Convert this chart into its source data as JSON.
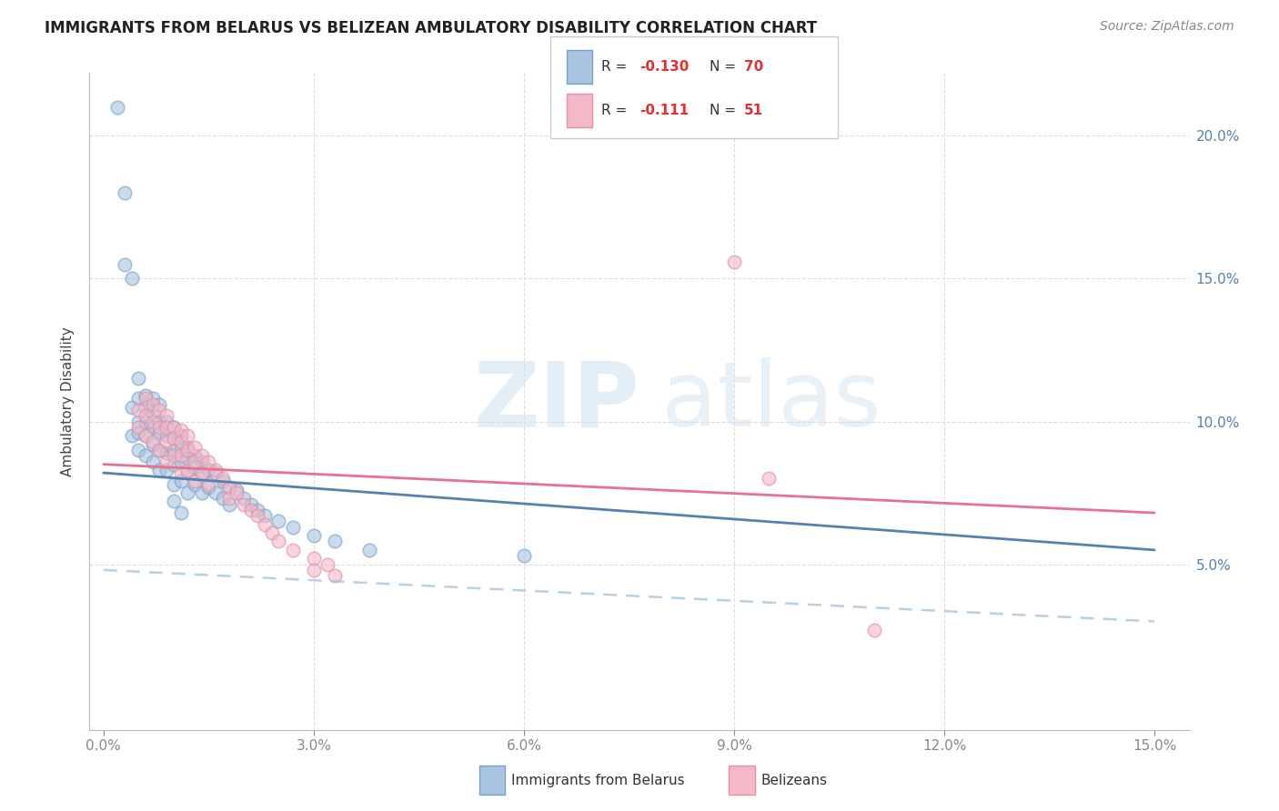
{
  "title": "IMMIGRANTS FROM BELARUS VS BELIZEAN AMBULATORY DISABILITY CORRELATION CHART",
  "source": "Source: ZipAtlas.com",
  "ylabel": "Ambulatory Disability",
  "blue_color": "#a8c4e0",
  "pink_color": "#f5b8c8",
  "blue_line_color": "#5580b0",
  "pink_line_color": "#e87090",
  "blue_dot_edge": "#7aa0c8",
  "pink_dot_edge": "#e090a8",
  "watermark_zip_color": "#c8dff0",
  "watermark_atlas_color": "#c8dff0",
  "grid_color": "#dddddd",
  "spine_color": "#bbbbbb",
  "title_color": "#222222",
  "source_color": "#888888",
  "right_axis_color": "#5580b0",
  "tick_color": "#888888",
  "legend_edge_color": "#cccccc",
  "belarus_x": [
    0.002,
    0.003,
    0.003,
    0.004,
    0.004,
    0.004,
    0.005,
    0.005,
    0.005,
    0.005,
    0.005,
    0.006,
    0.006,
    0.006,
    0.006,
    0.006,
    0.007,
    0.007,
    0.007,
    0.007,
    0.007,
    0.008,
    0.008,
    0.008,
    0.008,
    0.008,
    0.009,
    0.009,
    0.009,
    0.009,
    0.01,
    0.01,
    0.01,
    0.01,
    0.01,
    0.011,
    0.011,
    0.011,
    0.011,
    0.012,
    0.012,
    0.012,
    0.012,
    0.013,
    0.013,
    0.013,
    0.014,
    0.014,
    0.014,
    0.015,
    0.015,
    0.016,
    0.016,
    0.017,
    0.017,
    0.018,
    0.018,
    0.019,
    0.02,
    0.021,
    0.022,
    0.023,
    0.025,
    0.027,
    0.03,
    0.033,
    0.038,
    0.06,
    0.01,
    0.011
  ],
  "belarus_y": [
    0.21,
    0.18,
    0.155,
    0.15,
    0.105,
    0.095,
    0.115,
    0.108,
    0.1,
    0.096,
    0.09,
    0.109,
    0.105,
    0.1,
    0.095,
    0.088,
    0.108,
    0.103,
    0.098,
    0.092,
    0.086,
    0.106,
    0.1,
    0.096,
    0.09,
    0.083,
    0.1,
    0.095,
    0.089,
    0.083,
    0.098,
    0.094,
    0.09,
    0.085,
    0.078,
    0.095,
    0.09,
    0.086,
    0.079,
    0.091,
    0.087,
    0.082,
    0.075,
    0.088,
    0.084,
    0.078,
    0.086,
    0.081,
    0.075,
    0.083,
    0.077,
    0.082,
    0.075,
    0.079,
    0.073,
    0.077,
    0.071,
    0.076,
    0.073,
    0.071,
    0.069,
    0.067,
    0.065,
    0.063,
    0.06,
    0.058,
    0.055,
    0.053,
    0.072,
    0.068
  ],
  "belizean_x": [
    0.005,
    0.005,
    0.006,
    0.006,
    0.006,
    0.007,
    0.007,
    0.007,
    0.008,
    0.008,
    0.008,
    0.009,
    0.009,
    0.009,
    0.009,
    0.01,
    0.01,
    0.01,
    0.011,
    0.011,
    0.011,
    0.011,
    0.012,
    0.012,
    0.012,
    0.013,
    0.013,
    0.013,
    0.014,
    0.014,
    0.015,
    0.015,
    0.016,
    0.017,
    0.018,
    0.018,
    0.019,
    0.02,
    0.021,
    0.022,
    0.023,
    0.024,
    0.025,
    0.027,
    0.03,
    0.03,
    0.032,
    0.033,
    0.095,
    0.09,
    0.11
  ],
  "belizean_y": [
    0.104,
    0.098,
    0.108,
    0.102,
    0.095,
    0.106,
    0.1,
    0.093,
    0.104,
    0.098,
    0.09,
    0.102,
    0.098,
    0.093,
    0.086,
    0.098,
    0.094,
    0.088,
    0.097,
    0.093,
    0.088,
    0.082,
    0.095,
    0.09,
    0.083,
    0.091,
    0.086,
    0.079,
    0.088,
    0.082,
    0.086,
    0.078,
    0.083,
    0.08,
    0.077,
    0.073,
    0.075,
    0.071,
    0.069,
    0.067,
    0.064,
    0.061,
    0.058,
    0.055,
    0.052,
    0.048,
    0.05,
    0.046,
    0.08,
    0.156,
    0.027
  ],
  "blue_line": {
    "x0": 0.0,
    "x1": 0.15,
    "y0": 0.082,
    "y1": 0.055
  },
  "pink_line": {
    "x0": 0.0,
    "x1": 0.15,
    "y0": 0.085,
    "y1": 0.068
  },
  "dash_line": {
    "x0": 0.0,
    "x1": 0.15,
    "y0": 0.048,
    "y1": 0.03
  },
  "xlim": [
    -0.002,
    0.155
  ],
  "ylim": [
    -0.008,
    0.222
  ],
  "xticks": [
    0.0,
    0.03,
    0.06,
    0.09,
    0.12,
    0.15
  ],
  "yticks": [
    0.0,
    0.05,
    0.1,
    0.15,
    0.2
  ],
  "xtick_labels": [
    "0.0%",
    "3.0%",
    "6.0%",
    "9.0%",
    "12.0%",
    "15.0%"
  ],
  "ytick_labels_right": [
    "",
    "5.0%",
    "10.0%",
    "15.0%",
    "20.0%"
  ]
}
